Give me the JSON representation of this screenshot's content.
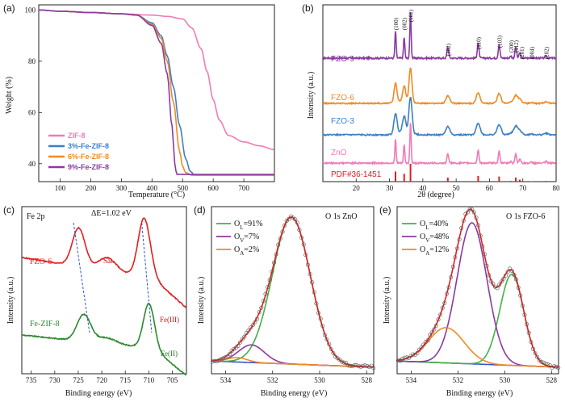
{
  "chart_data": [
    {
      "panel": "(a)",
      "type": "line",
      "xlabel": "Temperature (°C)",
      "ylabel": "Weight (%)",
      "xlim": [
        30,
        800
      ],
      "ylim": [
        33,
        102
      ],
      "xticks": [
        100,
        200,
        300,
        400,
        500,
        600,
        700
      ],
      "yticks": [
        40,
        60,
        80,
        100
      ],
      "legend_position": "bottom-left",
      "series": [
        {
          "name": "ZIF-8",
          "color": "#f07ab8",
          "x": [
            30,
            100,
            200,
            300,
            400,
            450,
            500,
            530,
            560,
            580,
            600,
            620,
            650,
            700,
            750,
            800
          ],
          "y": [
            100,
            99.5,
            99,
            98.5,
            98,
            97.5,
            96.5,
            93,
            85,
            76,
            65,
            57,
            51,
            48.5,
            47,
            45.5
          ]
        },
        {
          "name": "3%-Fe-ZIF-8",
          "color": "#3d7fc4",
          "x": [
            30,
            100,
            200,
            300,
            350,
            400,
            430,
            450,
            470,
            490,
            510,
            525,
            540,
            600,
            700,
            800
          ],
          "y": [
            100,
            99.5,
            99,
            98.5,
            98,
            95,
            90,
            82,
            70,
            55,
            42,
            37,
            35.5,
            35.5,
            35.5,
            35.5
          ]
        },
        {
          "name": "6%-Fe-ZIF-8",
          "color": "#f08a24",
          "x": [
            30,
            100,
            200,
            300,
            350,
            400,
            430,
            450,
            470,
            490,
            500,
            510,
            530,
            600,
            700,
            800
          ],
          "y": [
            100,
            99.5,
            99,
            98.5,
            98,
            94.5,
            89,
            80,
            64,
            45,
            39,
            36.5,
            35.5,
            35.5,
            35.5,
            35.5
          ]
        },
        {
          "name": "9%-Fe-ZIF-8",
          "color": "#8b3aa0",
          "x": [
            30,
            100,
            200,
            300,
            350,
            400,
            430,
            450,
            465,
            475,
            480,
            600,
            700,
            800
          ],
          "y": [
            100,
            99.5,
            99,
            98.5,
            98,
            94,
            87,
            75,
            55,
            40,
            35.8,
            35.8,
            35.8,
            35.8
          ]
        }
      ]
    },
    {
      "panel": "(b)",
      "type": "line",
      "xlabel": "2θ (degree)",
      "ylabel": "Intensity (a.u.)",
      "xlim": [
        10,
        80
      ],
      "xticks": [
        20,
        30,
        40,
        50,
        60,
        70,
        80
      ],
      "peaks_2theta": [
        31.8,
        34.4,
        36.3,
        47.5,
        56.6,
        62.9,
        66.4,
        67.9,
        69.1,
        72.6,
        77.0
      ],
      "reflection_labels": [
        "(100)",
        "(002)",
        "(101)",
        "(102)",
        "(110)",
        "(103)",
        "(200)",
        "(112)",
        "(201)",
        "(004)",
        "(202)"
      ],
      "series": [
        {
          "name": "FZO-9",
          "color": "#8b3aa0"
        },
        {
          "name": "FZO-6",
          "color": "#f08a24"
        },
        {
          "name": "FZO-3",
          "color": "#3d7fc4"
        },
        {
          "name": "ZnO",
          "color": "#f07ab8"
        },
        {
          "name": "PDF#36-1451",
          "color": "#e02020",
          "stick_positions": [
            31.8,
            34.4,
            36.3,
            47.5,
            56.6,
            62.9,
            66.4,
            67.9,
            69.1,
            72.6,
            77.0
          ],
          "stick_heights": [
            57,
            44,
            100,
            23,
            32,
            29,
            4,
            23,
            11,
            2,
            4
          ]
        }
      ]
    },
    {
      "panel": "(c)",
      "type": "line",
      "title": "Fe 2p",
      "xlabel": "Binding energy (eV)",
      "ylabel": "Intensity (a.u.)",
      "xlim": [
        737,
        702
      ],
      "xticks": [
        735,
        730,
        725,
        720,
        715,
        710,
        705
      ],
      "annotation": "ΔE=1.02 eV",
      "peak_labels": [
        "Sat.",
        "Fe(III)",
        "Fe(II)"
      ],
      "series": [
        {
          "name": "FZO-6",
          "color": "#e02020",
          "peaks_eV": [
            724.9,
            718.8,
            711.0
          ]
        },
        {
          "name": "Fe-ZIF-8",
          "color": "#2a8a2a",
          "peaks_eV": [
            723.8,
            710.0
          ]
        }
      ]
    },
    {
      "panel": "(d)",
      "type": "line",
      "title": "O 1s ZnO",
      "xlabel": "Binding energy (eV)",
      "ylabel": "Intensity (a.u.)",
      "xlim": [
        534.6,
        527.7
      ],
      "xticks": [
        534,
        532,
        530,
        528
      ],
      "components": [
        {
          "name": "OL",
          "label_prefix": "O",
          "label_sub": "L",
          "value": "=91%",
          "color": "#45b045",
          "center_eV": 531.2,
          "height": 1.0,
          "fwhm": 1.9
        },
        {
          "name": "OV",
          "label_prefix": "O",
          "label_sub": "V",
          "value": "=7%",
          "color": "#8b3aa0",
          "center_eV": 532.9,
          "height": 0.12,
          "fwhm": 1.3
        },
        {
          "name": "OA",
          "label_prefix": "O",
          "label_sub": "A",
          "value": "=2%",
          "color": "#f08a24",
          "center_eV": 533.5,
          "height": 0.03,
          "fwhm": 1.0
        }
      ]
    },
    {
      "panel": "(e)",
      "type": "line",
      "title": "O 1s FZO-6",
      "xlabel": "Binding energy (eV)",
      "ylabel": "Intensity (a.u.)",
      "xlim": [
        534.6,
        527.7
      ],
      "xticks": [
        534,
        532,
        530,
        528
      ],
      "components": [
        {
          "name": "OL",
          "label_prefix": "O",
          "label_sub": "L",
          "value": "=40%",
          "color": "#45b045",
          "center_eV": 529.7,
          "height": 0.62,
          "fwhm": 1.2
        },
        {
          "name": "OV",
          "label_prefix": "O",
          "label_sub": "V",
          "value": "=48%",
          "color": "#8b3aa0",
          "center_eV": 531.4,
          "height": 0.96,
          "fwhm": 1.5
        },
        {
          "name": "OA",
          "label_prefix": "O",
          "label_sub": "A",
          "value": "=12%",
          "color": "#f08a24",
          "center_eV": 532.5,
          "height": 0.24,
          "fwhm": 1.8
        }
      ]
    }
  ]
}
